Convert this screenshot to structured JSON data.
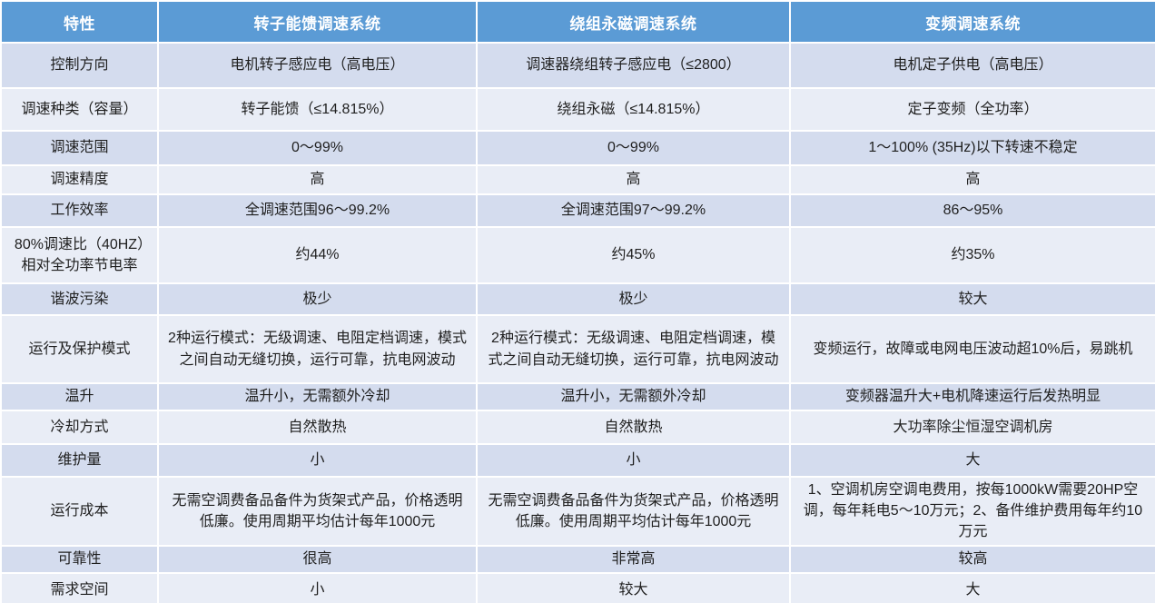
{
  "table": {
    "header": [
      "特性",
      "转子能馈调速系统",
      "绕组永磁调速系统",
      "变频调速系统"
    ],
    "rows": [
      {
        "label": "控制方向",
        "cells": [
          "电机转子感应电（高电压）",
          "调速器绕组转子感应电（≤2800）",
          "电机定子供电（高电压）"
        ]
      },
      {
        "label": "调速种类（容量）",
        "cells": [
          "转子能馈（≤14.815%）",
          "绕组永磁（≤14.815%）",
          "定子变频（全功率）"
        ]
      },
      {
        "label": "调速范围",
        "cells": [
          "0～99%",
          "0～99%",
          "1～100% (35Hz)以下转速不稳定"
        ]
      },
      {
        "label": "调速精度",
        "cells": [
          "高",
          "高",
          "高"
        ]
      },
      {
        "label": "工作效率",
        "cells": [
          "全调速范围96～99.2%",
          "全调速范围97～99.2%",
          "86～95%"
        ]
      },
      {
        "label": "80%调速比（40HZ）相对全功率节电率",
        "cells": [
          "约44%",
          "约45%",
          "约35%"
        ]
      },
      {
        "label": "谐波污染",
        "cells": [
          "极少",
          "极少",
          "较大"
        ]
      },
      {
        "label": "运行及保护模式",
        "cells": [
          "2种运行模式：无级调速、电阻定档调速，模式之间自动无缝切换，运行可靠，抗电网波动",
          "2种运行模式：无级调速、电阻定档调速，模式之间自动无缝切换，运行可靠，抗电网波动",
          "变频运行，故障或电网电压波动超10%后，易跳机"
        ]
      },
      {
        "label": "温升",
        "cells": [
          "温升小，无需额外冷却",
          "温升小，无需额外冷却",
          "变频器温升大+电机降速运行后发热明显"
        ]
      },
      {
        "label": "冷却方式",
        "cells": [
          "自然散热",
          "自然散热",
          "大功率除尘恒湿空调机房"
        ]
      },
      {
        "label": "维护量",
        "cells": [
          "小",
          "小",
          "大"
        ]
      },
      {
        "label": "运行成本",
        "cells": [
          "无需空调费备品备件为货架式产品，价格透明低廉。使用周期平均估计每年1000元",
          "无需空调费备品备件为货架式产品，价格透明低廉。使用周期平均估计每年1000元",
          "1、空调机房空调电费用，按每1000kW需要20HP空调，每年耗电5～10万元；2、备件维护费用每年约10万元"
        ]
      },
      {
        "label": "可靠性",
        "cells": [
          "很高",
          "非常高",
          "较高"
        ]
      },
      {
        "label": "需求空间",
        "cells": [
          "小",
          "较大",
          "大"
        ]
      }
    ]
  },
  "colors": {
    "header_bg": "#5B9BD5",
    "band_dark": "#D4DCEE",
    "band_light": "#E9EDF6",
    "grid": "#FFFFFF",
    "header_text": "#FFFFFF",
    "body_text": "#1F1F1F",
    "bottom_border": "#5B9BD5"
  }
}
